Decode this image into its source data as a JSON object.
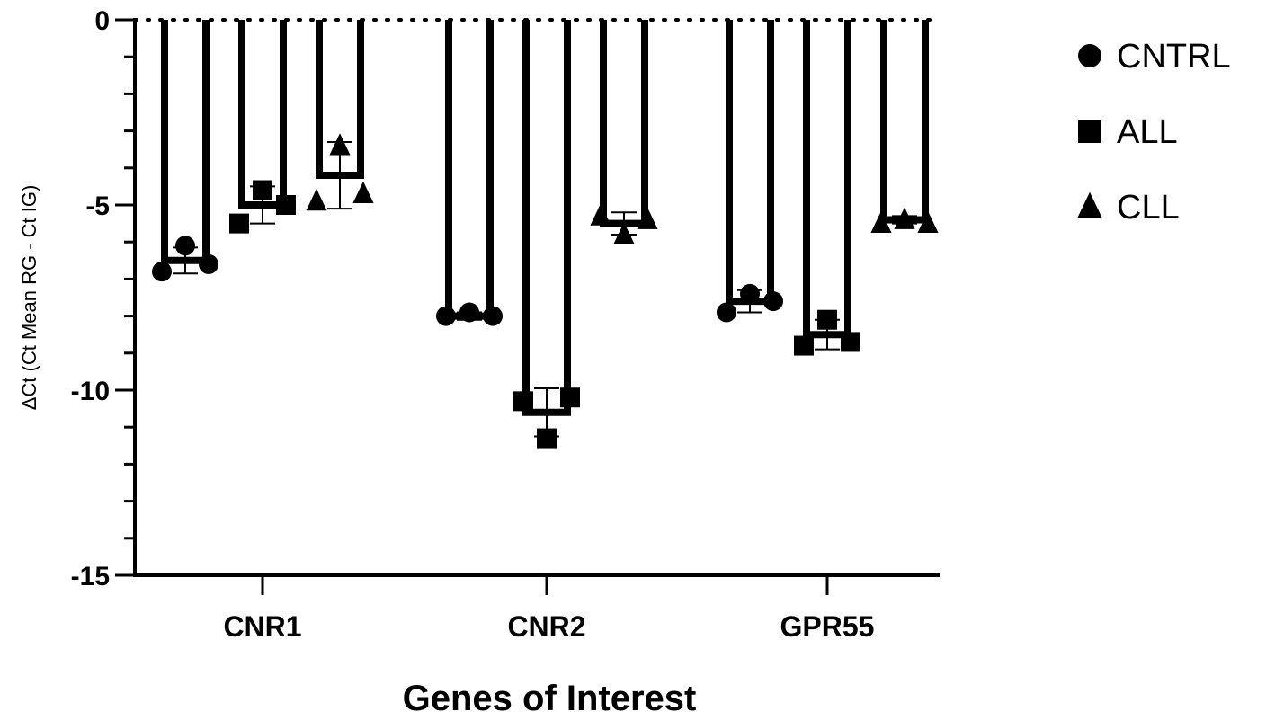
{
  "chart_data": {
    "type": "bar",
    "categories": [
      "CNR1",
      "CNR2",
      "GPR55"
    ],
    "xlabel": "Genes of Interest",
    "ylabel": "ΔCt (Ct Mean RG - Ct IG)",
    "ylim": [
      -15,
      0
    ],
    "yticks": [
      0,
      -5,
      -10,
      -15
    ],
    "ytick_labels": [
      "0",
      "-5",
      "-10",
      "-15"
    ],
    "grid": false,
    "reference_line": {
      "y": 0,
      "style": "dotted"
    },
    "legend_position": "top-right",
    "series": [
      {
        "name": "CNTRL",
        "marker": "circle",
        "values": [
          -6.5,
          -8.0,
          -7.6
        ],
        "errors": [
          0.35,
          0.1,
          0.3
        ],
        "points": [
          [
            -6.8,
            -6.1,
            -6.6
          ],
          [
            -8.0,
            -7.9,
            -8.0
          ],
          [
            -7.9,
            -7.4,
            -7.6
          ]
        ]
      },
      {
        "name": "ALL",
        "marker": "square",
        "values": [
          -5.0,
          -10.6,
          -8.5
        ],
        "errors": [
          0.5,
          0.65,
          0.4
        ],
        "points": [
          [
            -5.5,
            -4.6,
            -5.0
          ],
          [
            -10.3,
            -11.3,
            -10.2
          ],
          [
            -8.8,
            -8.1,
            -8.7
          ]
        ]
      },
      {
        "name": "CLL",
        "marker": "triangle",
        "values": [
          -4.2,
          -5.5,
          -5.4
        ],
        "errors": [
          0.9,
          0.3,
          0.1
        ],
        "points": [
          [
            -4.9,
            -3.4,
            -4.7
          ],
          [
            -5.3,
            -5.8,
            -5.4
          ],
          [
            -5.5,
            -5.4,
            -5.5
          ]
        ]
      }
    ]
  }
}
